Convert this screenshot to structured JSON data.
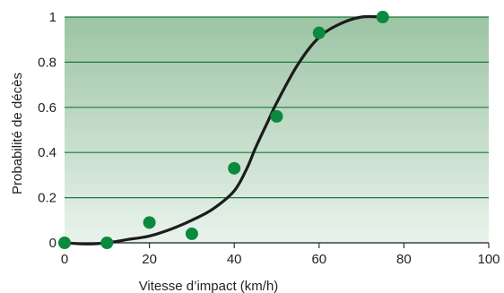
{
  "chart_data": {
    "type": "scatter",
    "title": "",
    "xlabel": "Vitesse d’impact (km/h)",
    "ylabel": "Probabilité de décès",
    "xlim": [
      0,
      100
    ],
    "ylim": [
      0,
      1
    ],
    "x_ticks": [
      {
        "value": 0,
        "label": "0"
      },
      {
        "value": 20,
        "label": "20"
      },
      {
        "value": 40,
        "label": "40"
      },
      {
        "value": 60,
        "label": "60"
      },
      {
        "value": 80,
        "label": "80"
      },
      {
        "value": 100,
        "label": "100"
      }
    ],
    "y_ticks": [
      {
        "value": 0,
        "label": "0"
      },
      {
        "value": 0.2,
        "label": "0.2"
      },
      {
        "value": 0.4,
        "label": "0.4"
      },
      {
        "value": 0.6,
        "label": "0.6"
      },
      {
        "value": 0.8,
        "label": "0.8"
      },
      {
        "value": 1,
        "label": "1"
      }
    ],
    "grid": "horizontal",
    "points": [
      {
        "x": 0,
        "y": 0.0
      },
      {
        "x": 10,
        "y": 0.0
      },
      {
        "x": 20,
        "y": 0.09
      },
      {
        "x": 30,
        "y": 0.04
      },
      {
        "x": 40,
        "y": 0.33
      },
      {
        "x": 50,
        "y": 0.56
      },
      {
        "x": 60,
        "y": 0.93
      },
      {
        "x": 75,
        "y": 1.0
      }
    ],
    "fit_curve": [
      {
        "x": 0,
        "y": 0.0
      },
      {
        "x": 5,
        "y": -0.005
      },
      {
        "x": 10,
        "y": 0.0
      },
      {
        "x": 15,
        "y": 0.015
      },
      {
        "x": 20,
        "y": 0.03
      },
      {
        "x": 25,
        "y": 0.06
      },
      {
        "x": 30,
        "y": 0.1
      },
      {
        "x": 35,
        "y": 0.15
      },
      {
        "x": 40,
        "y": 0.23
      },
      {
        "x": 43,
        "y": 0.33
      },
      {
        "x": 45,
        "y": 0.42
      },
      {
        "x": 48,
        "y": 0.54
      },
      {
        "x": 50,
        "y": 0.62
      },
      {
        "x": 55,
        "y": 0.79
      },
      {
        "x": 60,
        "y": 0.91
      },
      {
        "x": 65,
        "y": 0.97
      },
      {
        "x": 70,
        "y": 1.0
      },
      {
        "x": 75,
        "y": 1.0
      }
    ],
    "colors": {
      "point": "#0a8a3e",
      "curve": "#1c1c1c",
      "grid": "#1b7a3a",
      "bg_top": "#9cc4a4",
      "bg_bottom": "#e9f3ec"
    }
  }
}
